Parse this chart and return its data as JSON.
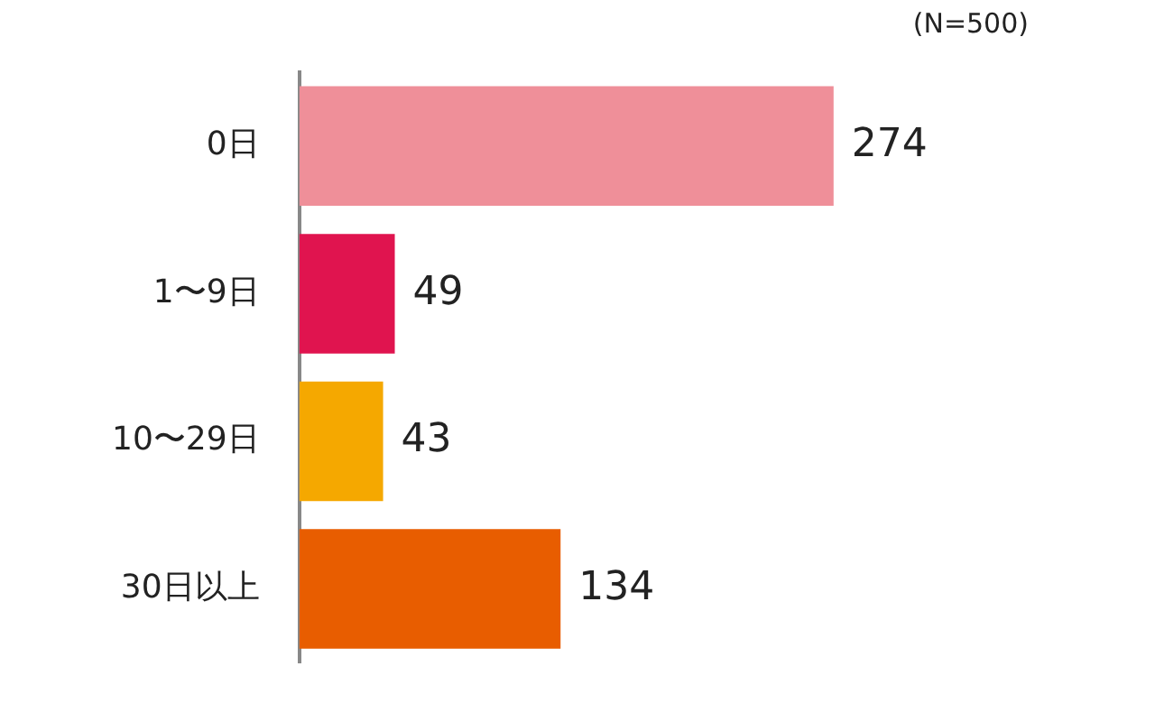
{
  "chart_data": {
    "type": "bar",
    "orientation": "horizontal",
    "categories": [
      "0日",
      "1〜9日",
      "10〜29日",
      "30日以上"
    ],
    "values": [
      274,
      49,
      43,
      134
    ],
    "colors": [
      "#ef8f99",
      "#e0144f",
      "#f5a800",
      "#e85d00"
    ],
    "data_labels": true,
    "legend": false,
    "annotations": [
      "(N=500)"
    ]
  }
}
